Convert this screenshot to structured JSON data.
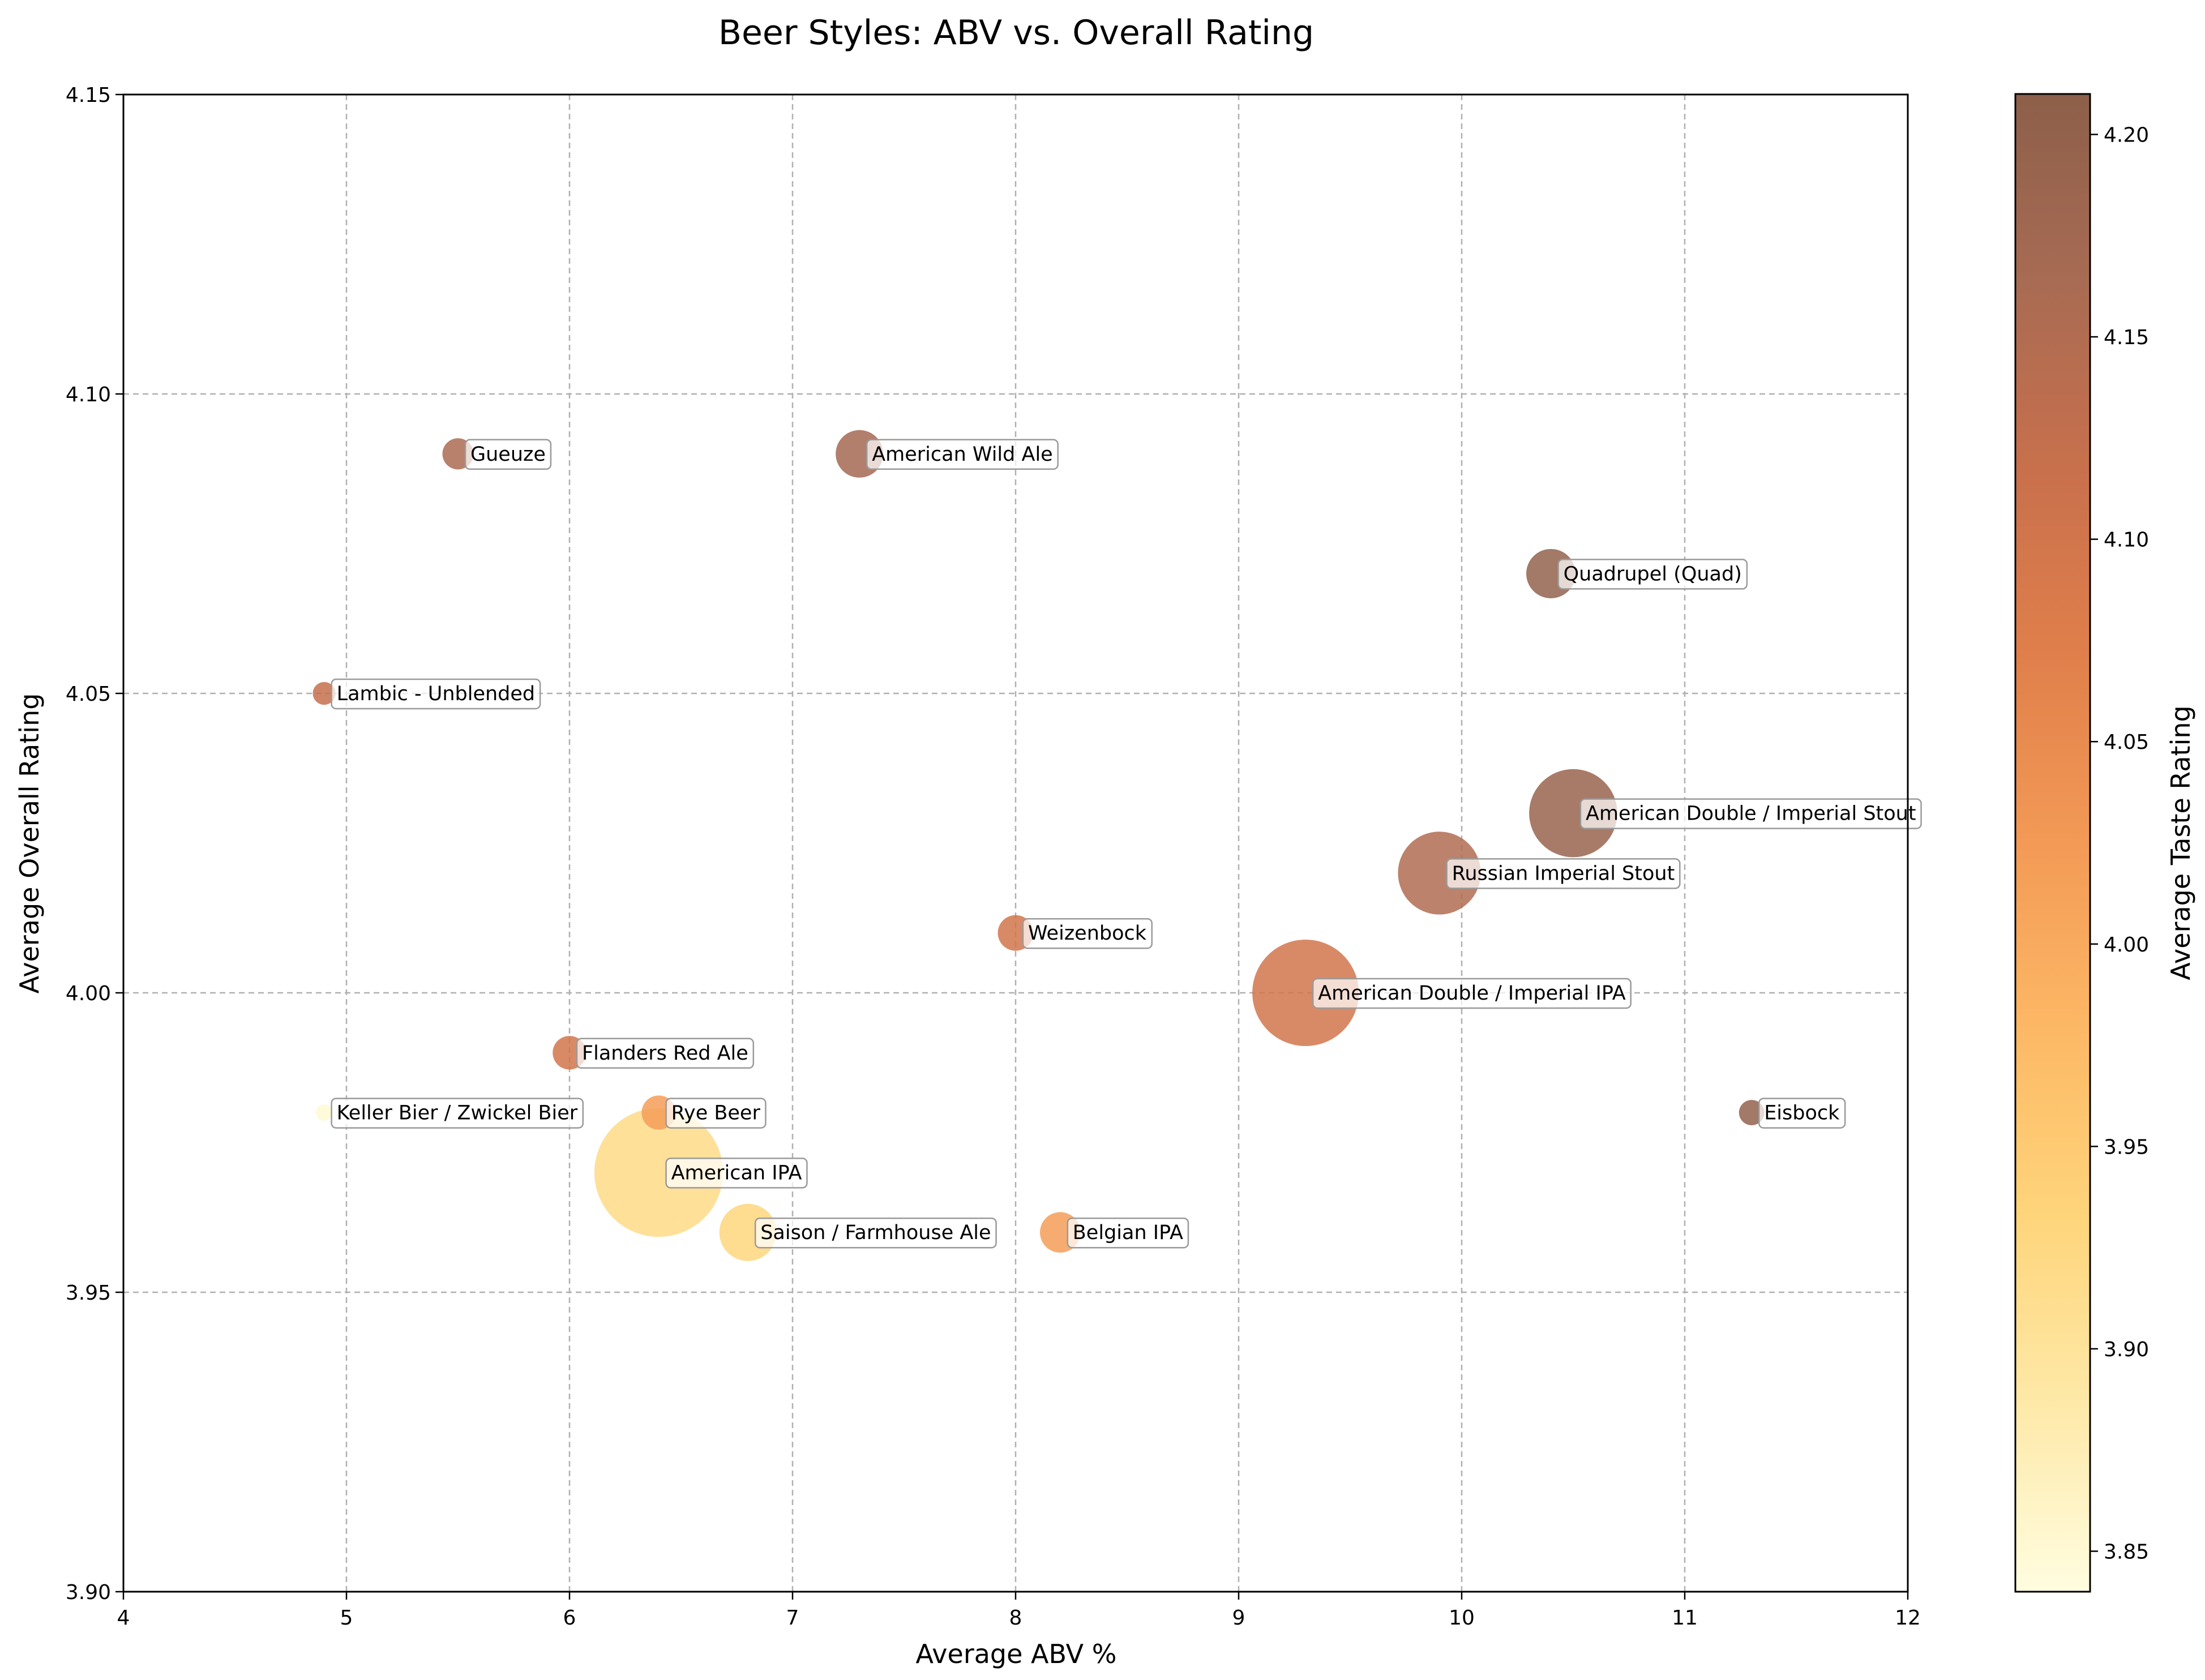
{
  "chart_data": {
    "type": "scatter",
    "title": "Beer Styles: ABV vs. Overall Rating",
    "xlabel": "Average ABV %",
    "ylabel": "Average Overall Rating",
    "xlim": [
      4,
      12
    ],
    "ylim": [
      3.9,
      4.15
    ],
    "x_ticks": [
      "4",
      "5",
      "6",
      "7",
      "8",
      "9",
      "10",
      "11",
      "12"
    ],
    "y_ticks": [
      "3.90",
      "3.95",
      "4.00",
      "4.05",
      "4.10",
      "4.15"
    ],
    "grid": true,
    "colorbar": {
      "label": "Average Taste Rating",
      "range": [
        3.84,
        4.21
      ],
      "ticks": [
        "3.85",
        "3.90",
        "3.95",
        "4.00",
        "4.05",
        "4.10",
        "4.15",
        "4.20"
      ],
      "colormap": [
        "#fffde0",
        "#fee9a8",
        "#fed57b",
        "#fdb865",
        "#f39a56",
        "#e07f4b",
        "#c8704c",
        "#a86b53",
        "#8d5f4a"
      ]
    },
    "points": [
      {
        "name": "Gueuze",
        "abv": 5.5,
        "overall": 4.09,
        "taste": 4.16,
        "size": 0.3
      },
      {
        "name": "American Wild Ale",
        "abv": 7.3,
        "overall": 4.09,
        "taste": 4.17,
        "size": 1.0
      },
      {
        "name": "Quadrupel (Quad)",
        "abv": 10.4,
        "overall": 4.07,
        "taste": 4.2,
        "size": 1.1
      },
      {
        "name": "Lambic - Unblended",
        "abv": 4.9,
        "overall": 4.05,
        "taste": 4.12,
        "size": 0.1
      },
      {
        "name": "American Double / Imperial Stout",
        "abv": 10.5,
        "overall": 4.03,
        "taste": 4.19,
        "size": 4.5
      },
      {
        "name": "Russian Imperial Stout",
        "abv": 9.9,
        "overall": 4.02,
        "taste": 4.15,
        "size": 3.9
      },
      {
        "name": "Weizenbock",
        "abv": 8.0,
        "overall": 4.01,
        "taste": 4.1,
        "size": 0.45
      },
      {
        "name": "American Double / Imperial IPA",
        "abv": 9.3,
        "overall": 4.0,
        "taste": 4.1,
        "size": 6.9
      },
      {
        "name": "Flanders Red Ale",
        "abv": 6.0,
        "overall": 3.99,
        "taste": 4.1,
        "size": 0.38
      },
      {
        "name": "Keller Bier / Zwickel Bier",
        "abv": 4.9,
        "overall": 3.98,
        "taste": 3.85,
        "size": 0.02
      },
      {
        "name": "Rye Beer",
        "abv": 6.4,
        "overall": 3.98,
        "taste": 4.02,
        "size": 0.4
      },
      {
        "name": "Eisbock",
        "abv": 11.3,
        "overall": 3.98,
        "taste": 4.2,
        "size": 0.15
      },
      {
        "name": "American IPA",
        "abv": 6.4,
        "overall": 3.97,
        "taste": 3.92,
        "size": 10.5
      },
      {
        "name": "Saison / Farmhouse Ale",
        "abv": 6.8,
        "overall": 3.96,
        "taste": 3.93,
        "size": 1.6
      },
      {
        "name": "Belgian IPA",
        "abv": 8.2,
        "overall": 3.96,
        "taste": 4.02,
        "size": 0.65
      }
    ]
  }
}
